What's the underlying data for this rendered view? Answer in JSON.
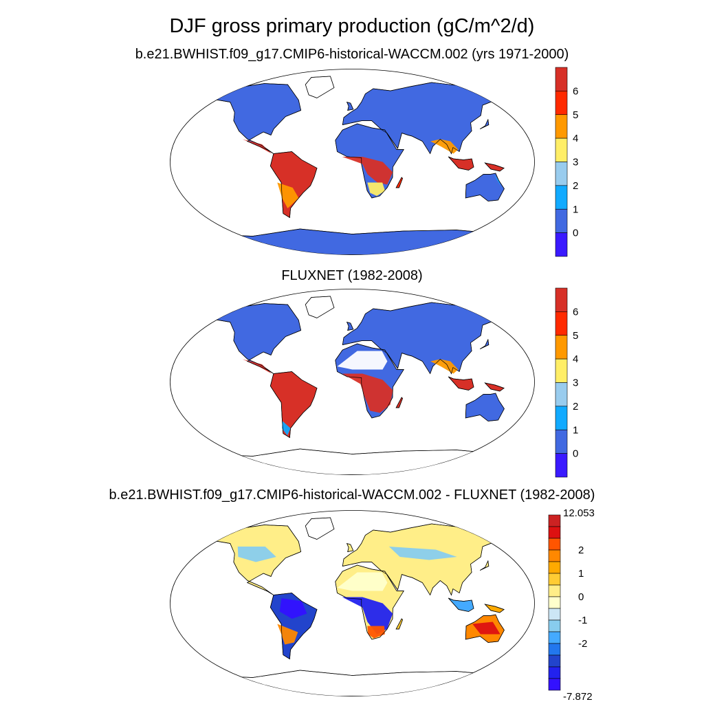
{
  "title": "DJF gross primary production (gC/m^2/d)",
  "panels": [
    {
      "id": "model",
      "subtitle": "b.e21.BWHIST.f09_g17.CMIP6-historical-WACCM.002 (yrs 1971-2000)",
      "colorbar": {
        "labels": [
          "6",
          "5",
          "4",
          "3",
          "2",
          "1",
          "0"
        ],
        "colors": [
          "#d73027",
          "#ff2a00",
          "#ff9900",
          "#ffee66",
          "#99ccee",
          "#11aaff",
          "#4169e1",
          "#3a1aff"
        ]
      }
    },
    {
      "id": "obs",
      "subtitle": "FLUXNET (1982-2008)",
      "colorbar": {
        "labels": [
          "6",
          "5",
          "4",
          "3",
          "2",
          "1",
          "0"
        ],
        "colors": [
          "#d73027",
          "#ff2a00",
          "#ff9900",
          "#ffee66",
          "#99ccee",
          "#11aaff",
          "#4169e1",
          "#3a1aff"
        ]
      }
    },
    {
      "id": "diff",
      "subtitle": "b.e21.BWHIST.f09_g17.CMIP6-historical-WACCM.002 - FLUXNET (1982-2008)",
      "colorbar": {
        "max_label": "12.053",
        "min_label": "-7.872",
        "labels": [
          "2",
          "1",
          "0",
          "-1",
          "-2"
        ],
        "colors": [
          "#cc2222",
          "#dd1111",
          "#ff5500",
          "#ff8800",
          "#ffaa00",
          "#ffcc33",
          "#ffee88",
          "#ffffcc",
          "#cce6f5",
          "#88ccee",
          "#44aaff",
          "#2277ee",
          "#2244cc",
          "#2222ee",
          "#3311ff"
        ]
      }
    }
  ]
}
